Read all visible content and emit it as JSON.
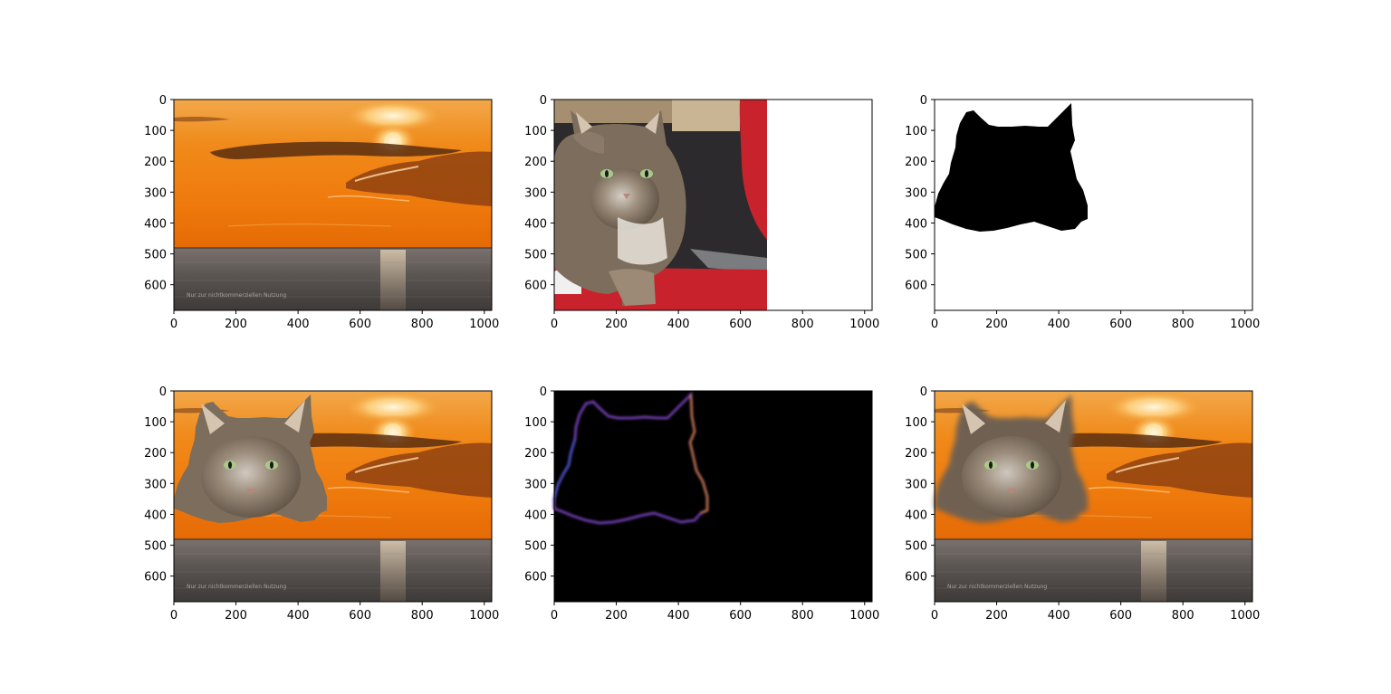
{
  "chart_data": [
    {
      "type": "image",
      "content": "sunset background",
      "xticks": [
        0,
        200,
        400,
        600,
        800,
        1000
      ],
      "yticks": [
        0,
        100,
        200,
        300,
        400,
        500,
        600
      ],
      "xlim": [
        0,
        1024
      ],
      "ylim": [
        683,
        0
      ]
    },
    {
      "type": "image",
      "content": "cat photo",
      "xticks": [
        0,
        200,
        400,
        600,
        800,
        1000
      ],
      "yticks": [
        0,
        100,
        200,
        300,
        400,
        500,
        600
      ],
      "xlim": [
        0,
        1024
      ],
      "ylim": [
        683,
        0
      ]
    },
    {
      "type": "image",
      "content": "cat mask",
      "xticks": [
        0,
        200,
        400,
        600,
        800,
        1000
      ],
      "yticks": [
        0,
        100,
        200,
        300,
        400,
        500,
        600
      ],
      "xlim": [
        0,
        1024
      ],
      "ylim": [
        683,
        0
      ]
    },
    {
      "type": "image",
      "content": "cat composited onto sunset",
      "xticks": [
        0,
        200,
        400,
        600,
        800,
        1000
      ],
      "yticks": [
        0,
        100,
        200,
        300,
        400,
        500,
        600
      ],
      "xlim": [
        0,
        1024
      ],
      "ylim": [
        683,
        0
      ]
    },
    {
      "type": "image",
      "content": "mask edge",
      "xticks": [
        0,
        200,
        400,
        600,
        800,
        1000
      ],
      "yticks": [
        0,
        100,
        200,
        300,
        400,
        500,
        600
      ],
      "xlim": [
        0,
        1024
      ],
      "ylim": [
        683,
        0
      ]
    },
    {
      "type": "image",
      "content": "blended composite",
      "xticks": [
        0,
        200,
        400,
        600,
        800,
        1000
      ],
      "yticks": [
        0,
        100,
        200,
        300,
        400,
        500,
        600
      ],
      "xlim": [
        0,
        1024
      ],
      "ylim": [
        683,
        0
      ]
    }
  ],
  "colors": {
    "sky_top": "#f2a23a",
    "sky_mid": "#f07d10",
    "sky_low": "#e66a05",
    "sea": "#5e5a5a",
    "cat_fur": "#7d6d5c",
    "chair_red": "#c8232c",
    "mask_black": "#000000",
    "edge_purple": "#6a3aa8",
    "edge_orange": "#c8781e"
  },
  "watermark_text": "Nur zur nichtkommerziellen Nutzung"
}
